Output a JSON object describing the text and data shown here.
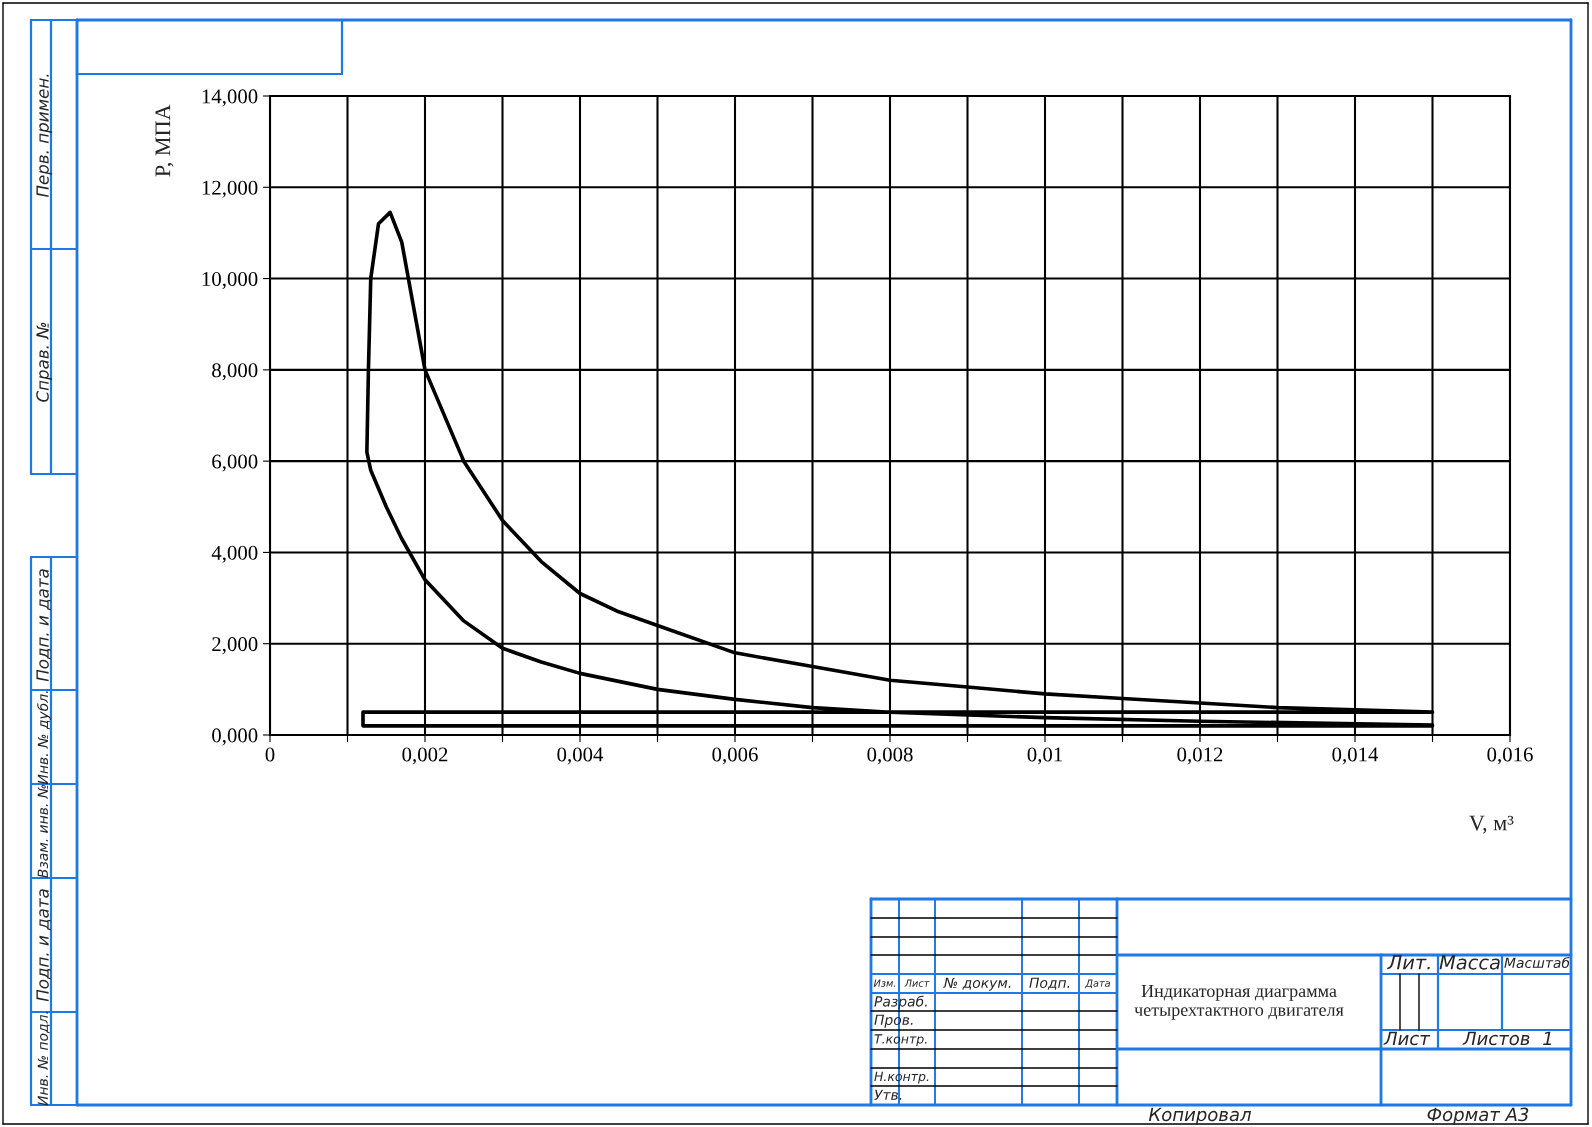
{
  "chart_data": {
    "type": "line",
    "title": "Индикаторная диаграмма четырехтактного двигателя",
    "xlabel": "V, м³",
    "ylabel": "P, МПА",
    "x": [
      0.015,
      0.012,
      0.01,
      0.008,
      0.007,
      0.006,
      0.005,
      0.004,
      0.0035,
      0.003,
      0.0025,
      0.002,
      0.0017,
      0.0015,
      0.0013,
      0.00125,
      0.00127,
      0.0013,
      0.0014,
      0.00155,
      0.0017,
      0.002,
      0.0023,
      0.0025,
      0.003,
      0.0035,
      0.004,
      0.0045,
      0.005,
      0.006,
      0.007,
      0.008,
      0.009,
      0.01,
      0.011,
      0.012,
      0.013,
      0.014,
      0.015,
      0.0012,
      0.0012,
      0.015
    ],
    "series": [
      {
        "color": "#000000",
        "values": [
          0.22,
          0.3,
          0.38,
          0.5,
          0.6,
          0.78,
          1.0,
          1.35,
          1.6,
          1.9,
          2.5,
          3.4,
          4.3,
          5.0,
          5.8,
          6.2,
          8.0,
          10.0,
          11.2,
          11.45,
          10.8,
          8.0,
          6.8,
          6.0,
          4.7,
          3.8,
          3.1,
          2.7,
          2.4,
          1.8,
          1.5,
          1.2,
          1.05,
          0.9,
          0.8,
          0.7,
          0.6,
          0.55,
          0.5,
          0.5,
          0.2,
          0.2
        ]
      }
    ],
    "xlim": [
      0,
      0.016
    ],
    "xticks": [
      {
        "value": 0,
        "label": "0"
      },
      {
        "value": 0.001,
        "label": null
      },
      {
        "value": 0.002,
        "label": "0,002"
      },
      {
        "value": 0.003,
        "label": null
      },
      {
        "value": 0.004,
        "label": "0,004"
      },
      {
        "value": 0.005,
        "label": null
      },
      {
        "value": 0.006,
        "label": "0,006"
      },
      {
        "value": 0.007,
        "label": null
      },
      {
        "value": 0.008,
        "label": "0,008"
      },
      {
        "value": 0.009,
        "label": null
      },
      {
        "value": 0.01,
        "label": "0,01"
      },
      {
        "value": 0.011,
        "label": null
      },
      {
        "value": 0.012,
        "label": "0,012"
      },
      {
        "value": 0.013,
        "label": null
      },
      {
        "value": 0.014,
        "label": "0,014"
      },
      {
        "value": 0.015,
        "label": null
      },
      {
        "value": 0.016,
        "label": "0,016"
      }
    ],
    "ylim": [
      0,
      14
    ],
    "yticks": [
      {
        "value": 0,
        "label": "0,000"
      },
      {
        "value": 2,
        "label": "2,000"
      },
      {
        "value": 4,
        "label": "4,000"
      },
      {
        "value": 6,
        "label": "6,000"
      },
      {
        "value": 8,
        "label": "8,000"
      },
      {
        "value": 10,
        "label": "10,000"
      },
      {
        "value": 12,
        "label": "12,000"
      },
      {
        "value": 14,
        "label": "14,000"
      }
    ],
    "grid": true,
    "marker": "none",
    "line_style": "solid",
    "annotations": [
      "Перв. примен.",
      "Справ. №",
      "Подп. и дата",
      "Инв. № дубл.",
      "Взам. инв. №",
      "Подп. и дата",
      "Инв. № подл.",
      "Изм.",
      "Лист",
      "№ докум.",
      "Подп.",
      "Дата",
      "Разраб.",
      "Пров.",
      "Т.контр.",
      "Н.контр.",
      "Утв.",
      "Лит.",
      "Масса",
      "Масштаб",
      "Лист",
      "Листов",
      "1",
      "Копировал",
      "Формат А3"
    ]
  }
}
